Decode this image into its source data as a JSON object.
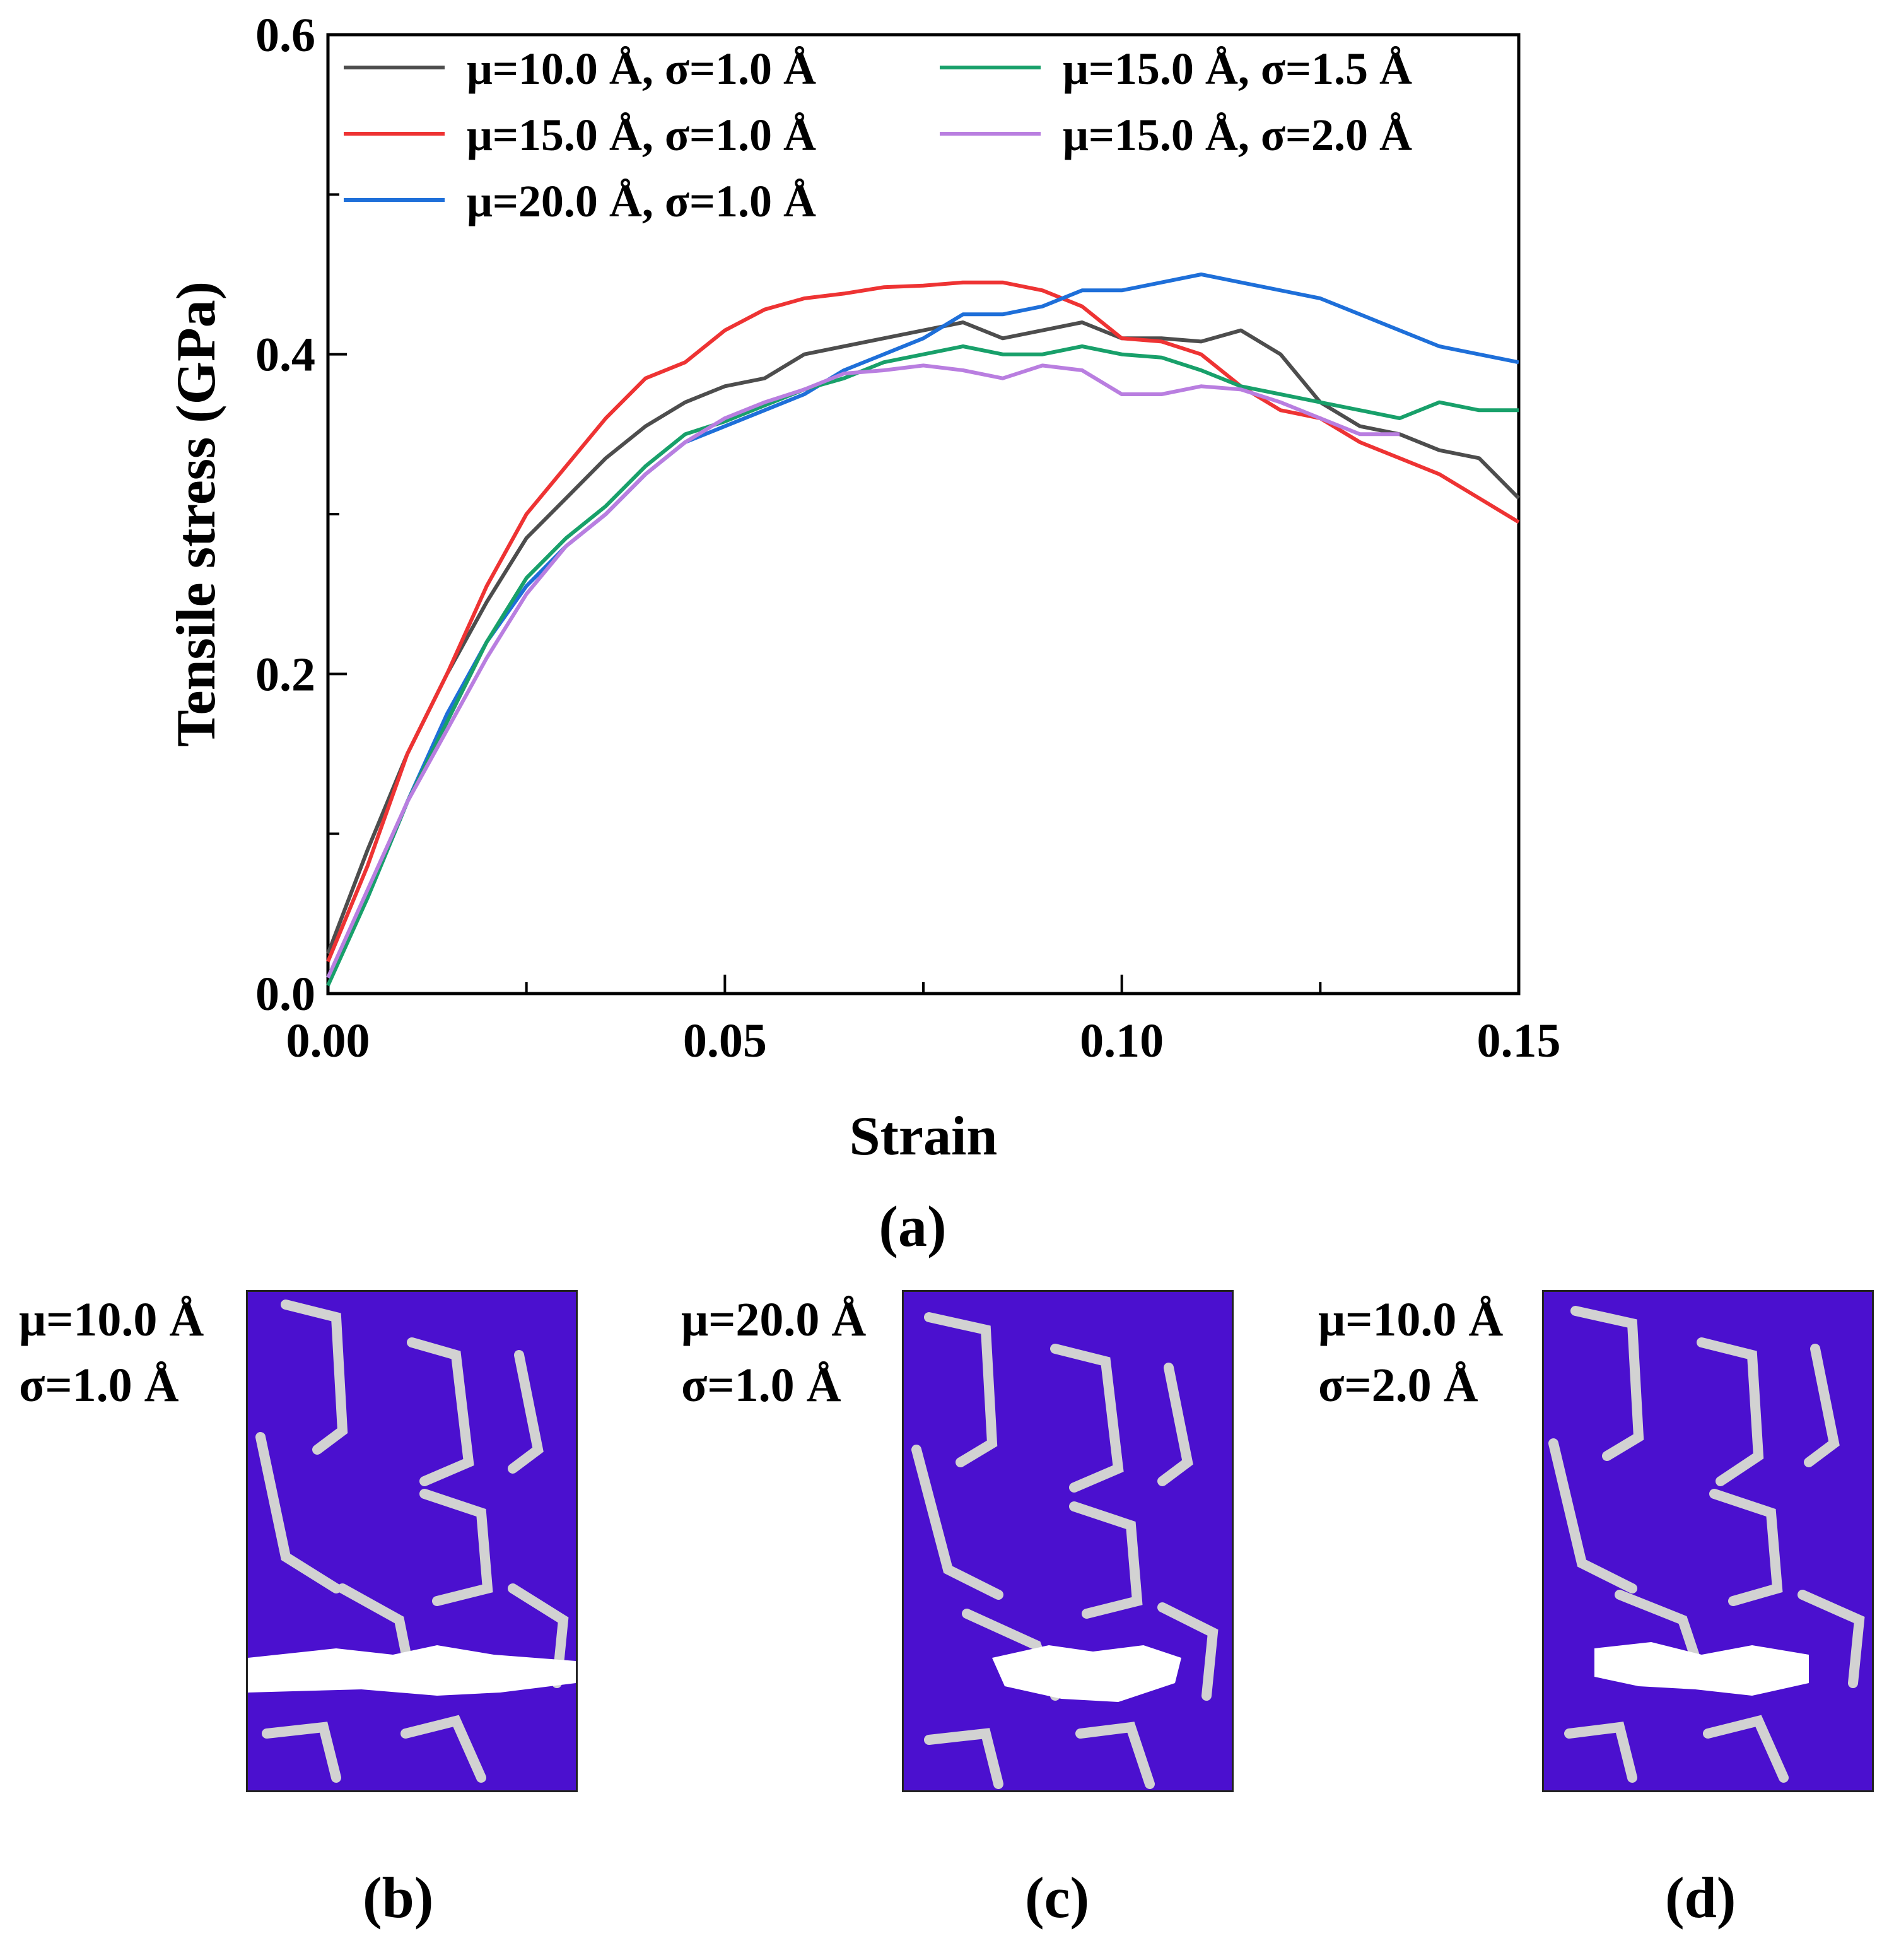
{
  "chart_data": {
    "type": "line",
    "panel_label": "(a)",
    "xlabel": "Strain",
    "ylabel": "Tensile stress (GPa)",
    "xlim": [
      0,
      0.15
    ],
    "ylim": [
      0,
      0.6
    ],
    "xticks": [
      0.0,
      0.05,
      0.1,
      0.15
    ],
    "xtick_labels": [
      "0.00",
      "0.05",
      "0.10",
      "0.15"
    ],
    "yticks": [
      0.0,
      0.2,
      0.4,
      0.6
    ],
    "ytick_labels": [
      "0.0",
      "0.2",
      "0.4",
      "0.6"
    ],
    "grid": false,
    "legend_position": "top-left",
    "series": [
      {
        "name": "μ=10.0 Å, σ=1.0 Å",
        "color": "#4d4d4d",
        "x": [
          0,
          0.005,
          0.01,
          0.015,
          0.02,
          0.025,
          0.03,
          0.035,
          0.04,
          0.045,
          0.05,
          0.055,
          0.06,
          0.065,
          0.07,
          0.075,
          0.08,
          0.085,
          0.09,
          0.095,
          0.1,
          0.105,
          0.11,
          0.115,
          0.12,
          0.125,
          0.13,
          0.135,
          0.14,
          0.145,
          0.15
        ],
        "y": [
          0.025,
          0.09,
          0.15,
          0.2,
          0.245,
          0.285,
          0.31,
          0.335,
          0.355,
          0.37,
          0.38,
          0.385,
          0.4,
          0.405,
          0.41,
          0.415,
          0.42,
          0.41,
          0.415,
          0.42,
          0.41,
          0.41,
          0.408,
          0.415,
          0.4,
          0.37,
          0.355,
          0.35,
          0.34,
          0.335,
          0.31
        ]
      },
      {
        "name": "μ=15.0 Å, σ=1.0 Å",
        "color": "#ee3333",
        "x": [
          0,
          0.005,
          0.01,
          0.015,
          0.02,
          0.025,
          0.03,
          0.035,
          0.04,
          0.045,
          0.05,
          0.055,
          0.06,
          0.065,
          0.07,
          0.075,
          0.08,
          0.085,
          0.09,
          0.095,
          0.1,
          0.105,
          0.11,
          0.115,
          0.12,
          0.125,
          0.13,
          0.135,
          0.14,
          0.145,
          0.15
        ],
        "y": [
          0.02,
          0.08,
          0.15,
          0.2,
          0.255,
          0.3,
          0.33,
          0.36,
          0.385,
          0.395,
          0.415,
          0.428,
          0.435,
          0.438,
          0.442,
          0.443,
          0.445,
          0.445,
          0.44,
          0.43,
          0.41,
          0.408,
          0.4,
          0.38,
          0.365,
          0.36,
          0.345,
          0.335,
          0.325,
          0.31,
          0.295
        ]
      },
      {
        "name": "μ=20.0 Å, σ=1.0 Å",
        "color": "#1e6fd9",
        "x": [
          0,
          0.005,
          0.01,
          0.015,
          0.02,
          0.025,
          0.03,
          0.035,
          0.04,
          0.045,
          0.05,
          0.055,
          0.06,
          0.065,
          0.07,
          0.075,
          0.08,
          0.085,
          0.09,
          0.095,
          0.1,
          0.105,
          0.11,
          0.115,
          0.12,
          0.125,
          0.13,
          0.135,
          0.14,
          0.145,
          0.15
        ],
        "y": [
          0.01,
          0.06,
          0.12,
          0.175,
          0.22,
          0.255,
          0.28,
          0.3,
          0.325,
          0.345,
          0.355,
          0.365,
          0.375,
          0.39,
          0.4,
          0.41,
          0.425,
          0.425,
          0.43,
          0.44,
          0.44,
          0.445,
          0.45,
          0.445,
          0.44,
          0.435,
          0.425,
          0.415,
          0.405,
          0.4,
          0.395
        ]
      },
      {
        "name": "μ=15.0 Å, σ=1.5 Å",
        "color": "#18a06a",
        "x": [
          0,
          0.005,
          0.01,
          0.015,
          0.02,
          0.025,
          0.03,
          0.035,
          0.04,
          0.045,
          0.05,
          0.055,
          0.06,
          0.065,
          0.07,
          0.075,
          0.08,
          0.085,
          0.09,
          0.095,
          0.1,
          0.105,
          0.11,
          0.115,
          0.12,
          0.125,
          0.13,
          0.135,
          0.14,
          0.145,
          0.15
        ],
        "y": [
          0.005,
          0.06,
          0.12,
          0.17,
          0.22,
          0.26,
          0.285,
          0.305,
          0.33,
          0.35,
          0.358,
          0.368,
          0.378,
          0.385,
          0.395,
          0.4,
          0.405,
          0.4,
          0.4,
          0.405,
          0.4,
          0.398,
          0.39,
          0.38,
          0.375,
          0.37,
          0.365,
          0.36,
          0.37,
          0.365,
          0.365
        ]
      },
      {
        "name": "μ=15.0 Å, σ=2.0 Å",
        "color": "#b97ee0",
        "x": [
          0,
          0.005,
          0.01,
          0.015,
          0.02,
          0.025,
          0.03,
          0.035,
          0.04,
          0.045,
          0.05,
          0.055,
          0.06,
          0.065,
          0.07,
          0.075,
          0.08,
          0.085,
          0.09,
          0.095,
          0.1,
          0.105,
          0.11,
          0.115,
          0.12,
          0.125,
          0.13,
          0.135,
          0.14,
          0.145,
          0.15
        ],
        "y": [
          0.01,
          0.065,
          0.12,
          0.165,
          0.21,
          0.25,
          0.28,
          0.3,
          0.325,
          0.345,
          0.36,
          0.37,
          0.378,
          0.388,
          0.39,
          0.393,
          0.39,
          0.385,
          0.393,
          0.39,
          0.375,
          0.375,
          0.38,
          0.378,
          0.37,
          0.36,
          0.35,
          0.35,
          null,
          null,
          null
        ]
      }
    ]
  },
  "snapshots": [
    {
      "line1": "μ=10.0 Å",
      "line2": "σ=1.0 Å",
      "letter": "(b)"
    },
    {
      "line1": "μ=20.0 Å",
      "line2": "σ=1.0 Å",
      "letter": "(c)"
    },
    {
      "line1": "μ=10.0 Å",
      "line2": "σ=2.0 Å",
      "letter": "(d)"
    }
  ],
  "colors": {
    "atom_purple": "#4b10cf",
    "boundary_gray": "#d2d2d2",
    "void_white": "#ffffff"
  }
}
